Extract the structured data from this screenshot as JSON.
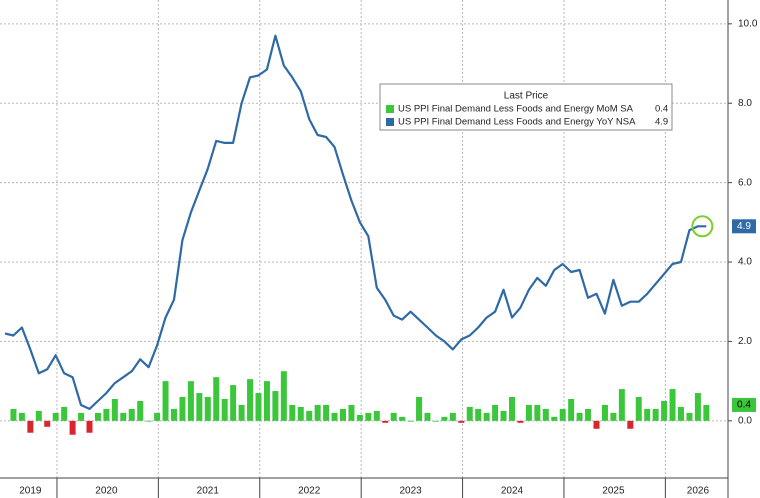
{
  "chart_data": {
    "type": "combo",
    "legend_title": "Last Price",
    "categories": [
      null,
      null,
      null,
      "2019",
      null,
      null,
      null,
      null,
      null,
      null,
      null,
      null,
      "2020",
      null,
      null,
      null,
      null,
      null,
      null,
      null,
      null,
      null,
      null,
      null,
      "2021",
      null,
      null,
      null,
      null,
      null,
      null,
      null,
      null,
      null,
      null,
      null,
      "2022",
      null,
      null,
      null,
      null,
      null,
      null,
      null,
      null,
      null,
      null,
      null,
      "2023",
      null,
      null,
      null,
      null,
      null,
      null,
      null,
      null,
      null,
      null,
      null,
      "2024",
      null,
      null,
      null,
      null,
      null,
      null,
      null,
      null,
      null,
      null,
      null,
      "2025",
      null,
      null,
      null,
      null,
      null,
      null,
      null,
      null,
      null,
      "2026",
      null
    ],
    "series": [
      {
        "name": "US PPI Final Demand Less Foods and Energy MoM SA",
        "type": "bar",
        "color": "#3cc63c",
        "negative_color": "#d8262e",
        "last_label": "0.4",
        "values": [
          null,
          0.3,
          0.2,
          -0.3,
          0.25,
          -0.15,
          0.2,
          0.35,
          -0.35,
          0.2,
          -0.3,
          0.2,
          0.3,
          0.55,
          0.2,
          0.3,
          0.5,
          0.0,
          0.2,
          1.0,
          0.3,
          0.6,
          1.0,
          0.7,
          0.6,
          1.1,
          0.55,
          0.9,
          0.4,
          1.05,
          0.7,
          1.0,
          0.75,
          1.25,
          0.4,
          0.35,
          0.25,
          0.4,
          0.4,
          0.2,
          0.3,
          0.4,
          0.15,
          0.2,
          0.25,
          -0.05,
          0.2,
          0.1,
          0.0,
          0.6,
          0.2,
          0.0,
          0.1,
          0.2,
          -0.05,
          0.35,
          0.3,
          0.2,
          0.4,
          0.25,
          0.6,
          -0.05,
          0.4,
          0.4,
          0.3,
          0.1,
          0.3,
          0.55,
          0.2,
          0.3,
          -0.2,
          0.4,
          0.2,
          0.8,
          -0.2,
          0.6,
          0.3,
          0.3,
          0.5,
          0.8,
          0.35,
          0.2,
          0.7,
          0.4
        ]
      },
      {
        "name": "US PPI Final Demand Less Foods and Energy YoY NSA",
        "type": "line",
        "color": "#2f6aa6",
        "last_label": "4.9",
        "values": [
          2.2,
          2.15,
          2.35,
          1.8,
          1.2,
          1.3,
          1.65,
          1.2,
          1.1,
          0.4,
          0.3,
          0.5,
          0.7,
          0.95,
          1.1,
          1.25,
          1.55,
          1.35,
          1.9,
          2.6,
          3.05,
          4.55,
          5.25,
          5.8,
          6.35,
          7.05,
          7.0,
          7.0,
          8.0,
          8.65,
          8.7,
          8.85,
          9.7,
          8.95,
          8.65,
          8.3,
          7.6,
          7.2,
          7.15,
          6.9,
          6.2,
          5.55,
          5.0,
          4.65,
          3.35,
          3.05,
          2.65,
          2.55,
          2.75,
          2.55,
          2.35,
          2.15,
          2.0,
          1.8,
          2.05,
          2.15,
          2.35,
          2.6,
          2.75,
          3.3,
          2.6,
          2.85,
          3.3,
          3.6,
          3.4,
          3.8,
          3.95,
          3.75,
          3.8,
          3.1,
          3.2,
          2.7,
          3.55,
          2.9,
          3.0,
          3.0,
          3.2,
          3.45,
          3.7,
          3.95,
          4.0,
          4.8,
          4.9,
          4.9
        ]
      }
    ],
    "ylim": [
      -1.44,
      10.6
    ],
    "yticks": [
      {
        "value": 0,
        "label": "0.0"
      },
      {
        "value": 2,
        "label": "2.0"
      },
      {
        "value": 4,
        "label": "4.0"
      },
      {
        "value": 6,
        "label": "6.0"
      },
      {
        "value": 8,
        "label": "8.0"
      },
      {
        "value": 10,
        "label": "10.0"
      }
    ],
    "grid": true
  }
}
